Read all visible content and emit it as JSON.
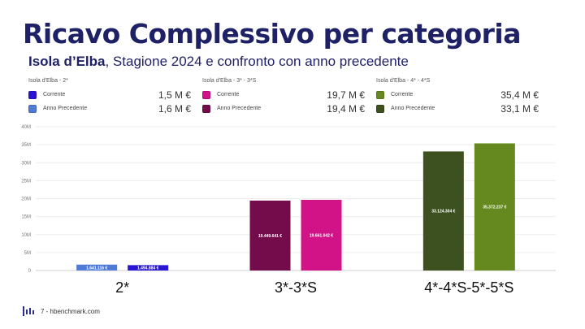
{
  "title": "Ricavo Complessivo per categoria",
  "subtitle": {
    "location": "Isola d’Elba",
    "rest": ", Stagione 2024 e confronto con anno precedente"
  },
  "legends": [
    {
      "heading": "Isola d'Elba - 2*",
      "items": [
        {
          "label": "Corrente",
          "value": "1,5 M €",
          "color": "#2a14d4"
        },
        {
          "label": "Anno Precedente",
          "value": "1,6 M €",
          "color": "#4e7bd6"
        }
      ]
    },
    {
      "heading": "Isola d'Elba - 3* - 3*S",
      "items": [
        {
          "label": "Corrente",
          "value": "19,7 M €",
          "color": "#d21388"
        },
        {
          "label": "Anno Precedente",
          "value": "19,4 M €",
          "color": "#740c4b"
        }
      ]
    },
    {
      "heading": "Isola d'Elba - 4* - 4*S",
      "items": [
        {
          "label": "Corrente",
          "value": "35,4 M €",
          "color": "#66891f"
        },
        {
          "label": "Anno Precedente",
          "value": "33,1 M €",
          "color": "#3d5120"
        }
      ]
    }
  ],
  "chart_data": {
    "type": "bar",
    "title": "",
    "xlabel": "",
    "ylabel": "",
    "categories": [
      "2*",
      "3*-3*S",
      "4*-4*S-5*-5*S"
    ],
    "ylim": [
      0,
      40000000
    ],
    "yticks": [
      "0",
      "5M",
      "10M",
      "15M",
      "20M",
      "25M",
      "30M",
      "35M",
      "40M"
    ],
    "grid": true,
    "groups": [
      {
        "category": "2*",
        "bars": [
          {
            "value": 1641116,
            "label": "1.641.116 €",
            "color": "#4e7bd6"
          },
          {
            "value": 1494884,
            "label": "1.494.884 €",
            "color": "#2a14d4"
          }
        ]
      },
      {
        "category": "3*-3*S",
        "bars": [
          {
            "value": 19449641,
            "label": "19.449.641 €",
            "color": "#740c4b"
          },
          {
            "value": 19661042,
            "label": "19.661.042 €",
            "color": "#d21388"
          }
        ]
      },
      {
        "category": "4*-4*S-5*-5*S",
        "bars": [
          {
            "value": 33124304,
            "label": "33.124.304 €",
            "color": "#3d5120"
          },
          {
            "value": 35372237,
            "label": "35.372.237 €",
            "color": "#66891f"
          }
        ]
      }
    ]
  },
  "footer": {
    "page_text": "7 - hbenchmark.com",
    "logo_color": "#2a2f8f"
  }
}
